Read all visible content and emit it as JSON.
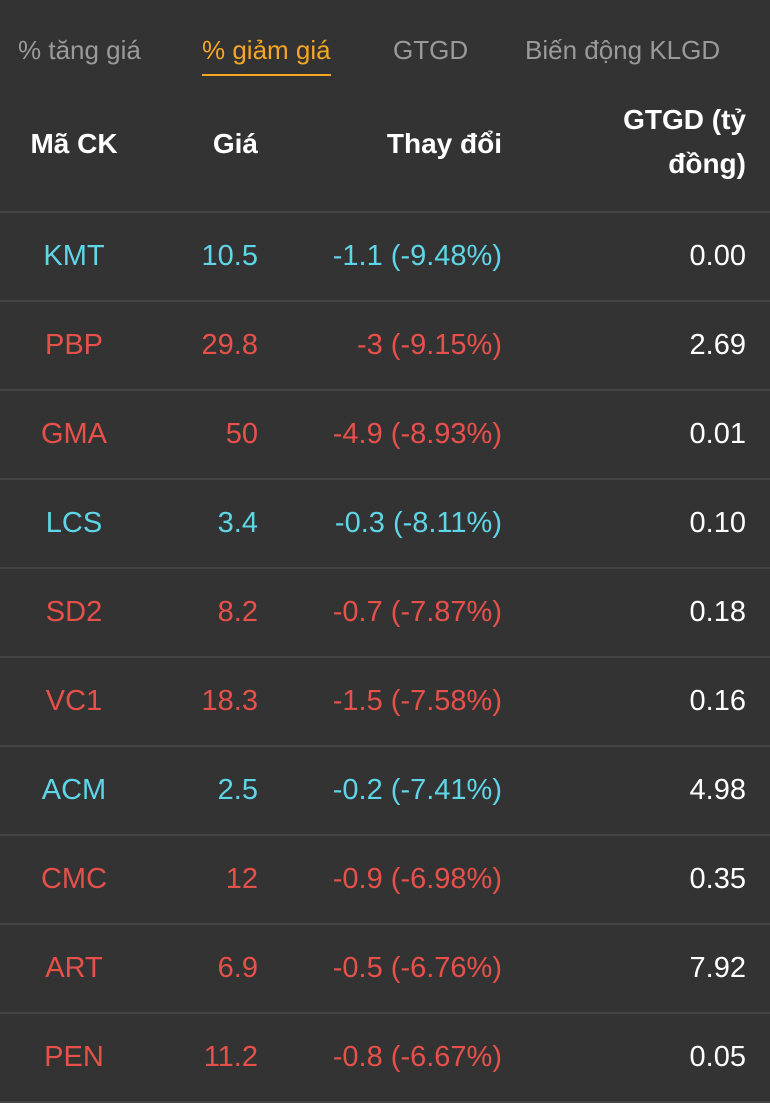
{
  "tabs": [
    {
      "label": "% tăng giá",
      "active": false
    },
    {
      "label": "% giảm giá",
      "active": true
    },
    {
      "label": "GTGD",
      "active": false
    },
    {
      "label": "Biến động KLGD",
      "active": false
    }
  ],
  "colors": {
    "floor": "#5ed6e8",
    "down": "#e8504a",
    "active_tab": "#f5a623",
    "background": "#333333"
  },
  "columns": {
    "symbol": "Mã CK",
    "price": "Giá",
    "change": "Thay đổi",
    "value_line1": "GTGD (tỷ",
    "value_line2": "đồng)"
  },
  "rows": [
    {
      "symbol": "KMT",
      "price": "10.5",
      "change": "-1.1 (-9.48%)",
      "value": "0.00",
      "status": "floor"
    },
    {
      "symbol": "PBP",
      "price": "29.8",
      "change": "-3 (-9.15%)",
      "value": "2.69",
      "status": "down"
    },
    {
      "symbol": "GMA",
      "price": "50",
      "change": "-4.9 (-8.93%)",
      "value": "0.01",
      "status": "down"
    },
    {
      "symbol": "LCS",
      "price": "3.4",
      "change": "-0.3 (-8.11%)",
      "value": "0.10",
      "status": "floor"
    },
    {
      "symbol": "SD2",
      "price": "8.2",
      "change": "-0.7 (-7.87%)",
      "value": "0.18",
      "status": "down"
    },
    {
      "symbol": "VC1",
      "price": "18.3",
      "change": "-1.5 (-7.58%)",
      "value": "0.16",
      "status": "down"
    },
    {
      "symbol": "ACM",
      "price": "2.5",
      "change": "-0.2 (-7.41%)",
      "value": "4.98",
      "status": "floor"
    },
    {
      "symbol": "CMC",
      "price": "12",
      "change": "-0.9 (-6.98%)",
      "value": "0.35",
      "status": "down"
    },
    {
      "symbol": "ART",
      "price": "6.9",
      "change": "-0.5 (-6.76%)",
      "value": "7.92",
      "status": "down"
    },
    {
      "symbol": "PEN",
      "price": "11.2",
      "change": "-0.8 (-6.67%)",
      "value": "0.05",
      "status": "down"
    }
  ]
}
